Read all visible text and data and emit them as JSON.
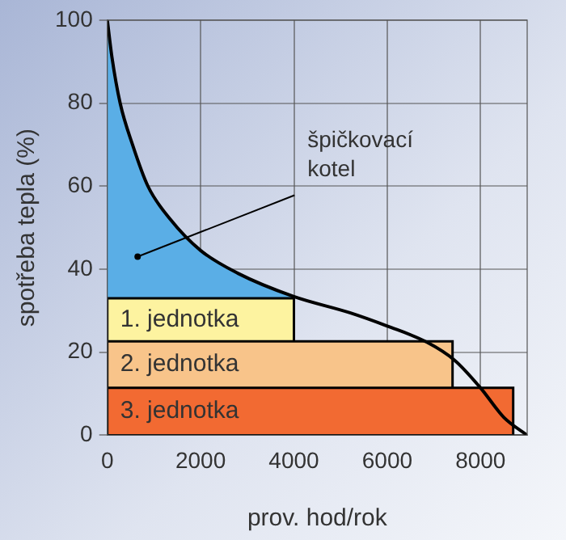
{
  "chart_data": {
    "type": "area",
    "xlabel": "prov. hod/rok",
    "ylabel": "spotřeba tepla (%)",
    "xlim": [
      0,
      9000
    ],
    "ylim": [
      0,
      100
    ],
    "xticks": [
      0,
      2000,
      4000,
      6000,
      8000
    ],
    "yticks": [
      0,
      20,
      40,
      60,
      80,
      100
    ],
    "grid": true,
    "legend": false,
    "annotations": [
      {
        "text": "špičkovací\nkotel",
        "x": 650,
        "y": 43
      }
    ],
    "series": [
      {
        "name": "3. jednotka",
        "color": "#f26a32",
        "x": [
          0,
          8700
        ],
        "values": [
          11.4,
          11.4
        ]
      },
      {
        "name": "2. jednotka",
        "color": "#f8c48a",
        "x": [
          0,
          7400
        ],
        "values": [
          22.6,
          22.6
        ]
      },
      {
        "name": "1. jednotka",
        "color": "#fdf3a0",
        "x": [
          0,
          4000
        ],
        "values": [
          33,
          33
        ]
      },
      {
        "color": "#5aaee6",
        "x": [
          0,
          100,
          275,
          540,
          870,
          1350,
          2000,
          2800,
          4000
        ],
        "values": [
          100,
          91,
          80,
          70,
          60,
          52,
          44.5,
          39,
          33.4
        ]
      },
      {
        "type": "line",
        "color": "#000000",
        "x": [
          0,
          100,
          275,
          540,
          870,
          1350,
          2000,
          2800,
          4000,
          5200,
          6000,
          6850,
          7450,
          8000,
          8500,
          9000
        ],
        "values": [
          100,
          91,
          80,
          70,
          60,
          52,
          44.5,
          39,
          33.4,
          29.5,
          26.3,
          22.4,
          18,
          11.4,
          4.3,
          0
        ]
      }
    ]
  }
}
